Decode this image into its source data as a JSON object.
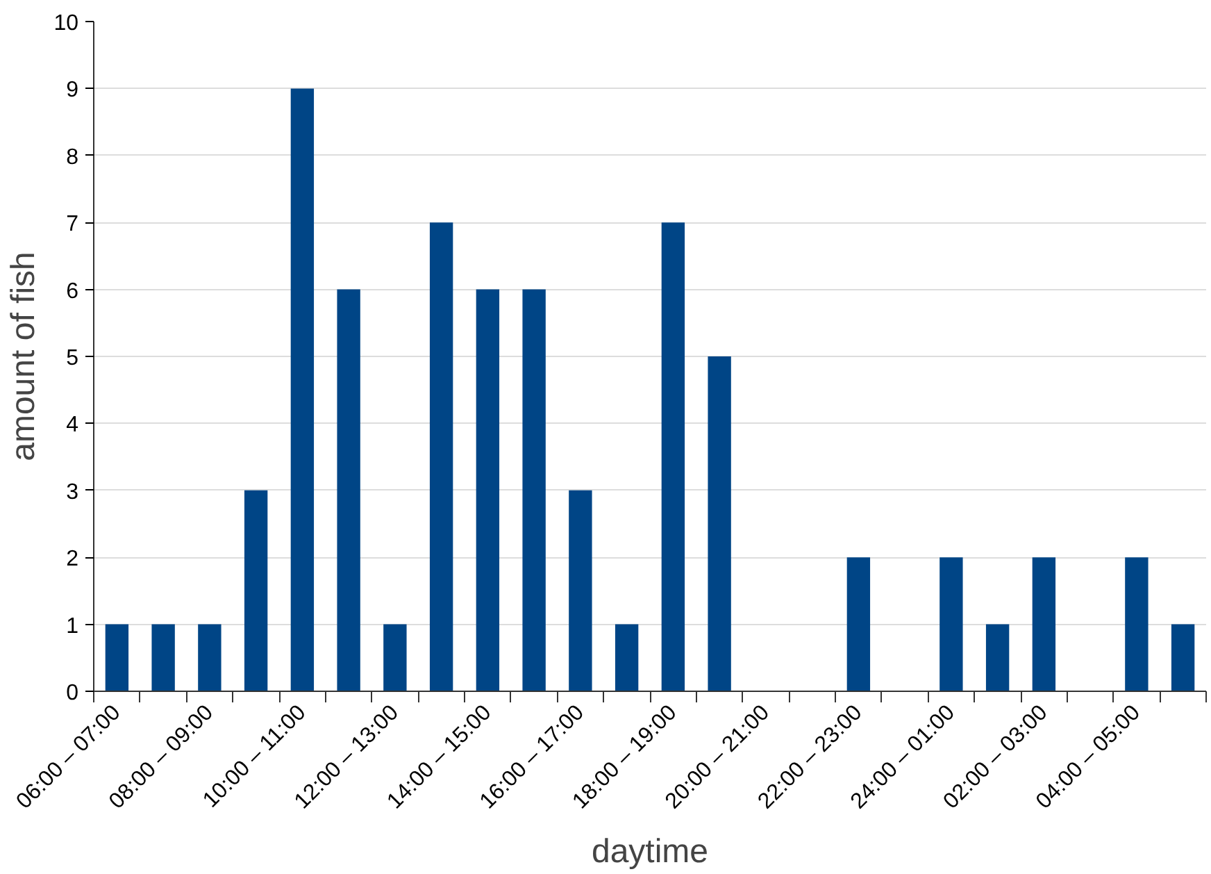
{
  "chart_data": {
    "type": "bar",
    "xlabel": "daytime",
    "ylabel": "amount of fish",
    "categories": [
      "06:00 – 07:00",
      null,
      "08:00 – 09:00",
      null,
      "10:00 – 11:00",
      null,
      "12:00 – 13:00",
      null,
      "14:00 – 15:00",
      null,
      "16:00 – 17:00",
      null,
      "18:00 – 19:00",
      null,
      "20:00 – 21:00",
      null,
      "22:00 – 23:00",
      null,
      "24:00 – 01:00",
      null,
      "02:00 – 03:00",
      null,
      "04:00 – 05:00",
      null
    ],
    "values": [
      1,
      1,
      1,
      3,
      9,
      6,
      1,
      7,
      6,
      6,
      3,
      1,
      7,
      5,
      0,
      0,
      2,
      0,
      2,
      1,
      2,
      0,
      2,
      1
    ],
    "color": "#004586",
    "ylim": [
      0,
      10
    ],
    "yticks": [
      0,
      1,
      2,
      3,
      4,
      5,
      6,
      7,
      8,
      9,
      10
    ],
    "grid": "y"
  }
}
